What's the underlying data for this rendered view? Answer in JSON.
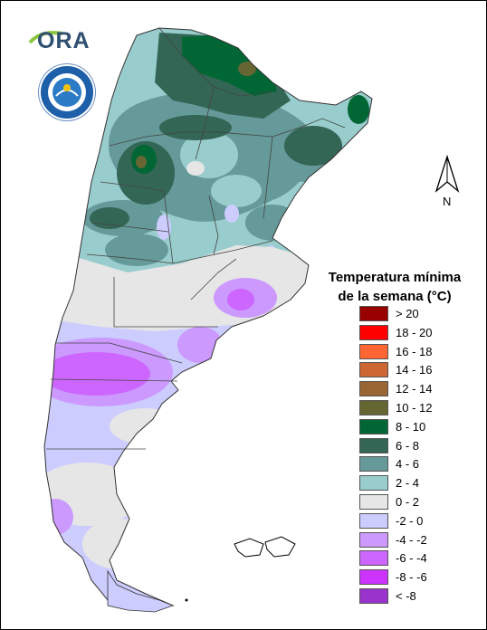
{
  "logo": {
    "text": "ORA"
  },
  "north": {
    "label": "N"
  },
  "legend": {
    "title_line1": "Temperatura mínima",
    "title_line2": "de la semana (°C)",
    "items": [
      {
        "label": "> 20",
        "color": "#990000"
      },
      {
        "label": "18 - 20",
        "color": "#ff0000"
      },
      {
        "label": "16 - 18",
        "color": "#ff6633"
      },
      {
        "label": "14 - 16",
        "color": "#cc6633"
      },
      {
        "label": "12 - 14",
        "color": "#996633"
      },
      {
        "label": "10 - 12",
        "color": "#666633"
      },
      {
        "label": "8 - 10",
        "color": "#006633"
      },
      {
        "label": "6 - 8",
        "color": "#336655"
      },
      {
        "label": "4 - 6",
        "color": "#669999"
      },
      {
        "label": "2 - 4",
        "color": "#99cccc"
      },
      {
        "label": "0 - 2",
        "color": "#e6e6e6"
      },
      {
        "label": "-2 - 0",
        "color": "#ccccff"
      },
      {
        "label": "-4 - -2",
        "color": "#cc99ff"
      },
      {
        "label": "-6 - -4",
        "color": "#cc66ff"
      },
      {
        "label": "-8 - -6",
        "color": "#cc33ff"
      },
      {
        "label": "< -8",
        "color": "#9933cc"
      }
    ]
  }
}
